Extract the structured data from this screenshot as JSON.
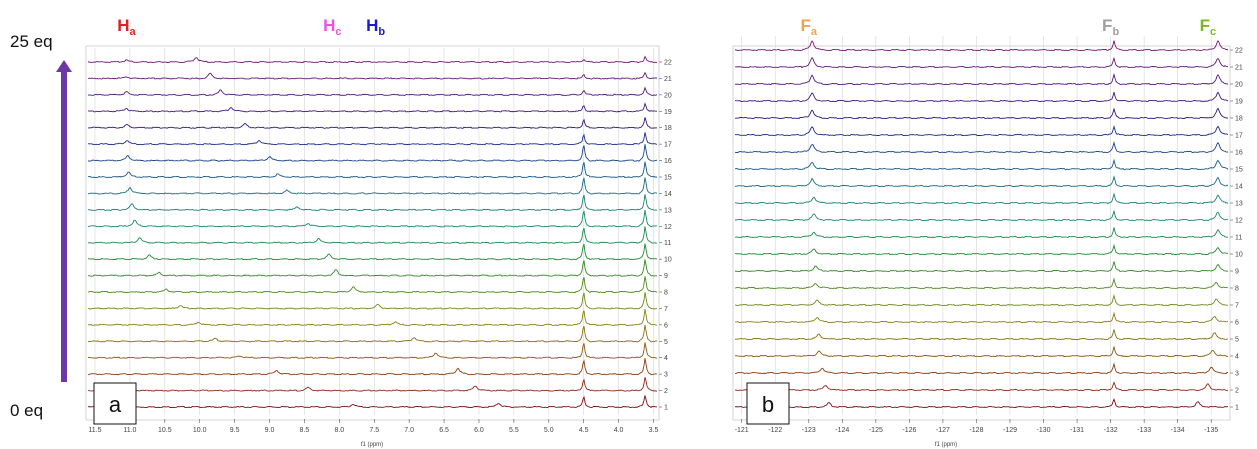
{
  "axis_label": "f1 (ppm)",
  "eq_top": "25 eq",
  "eq_bottom": "0 eq",
  "arrow_color": "#6b38a6",
  "chart_data": [
    {
      "type": "line",
      "panel_label": "a",
      "xlabel": "f1 (ppm)",
      "x_reversed": true,
      "xlim": [
        3.45,
        11.6
      ],
      "x_ticks": [
        "11.5",
        "11.0",
        "10.5",
        "10.0",
        "9.5",
        "9.0",
        "8.5",
        "8.0",
        "7.5",
        "7.0",
        "6.5",
        "6.0",
        "5.5",
        "5.0",
        "4.5",
        "4.0",
        "3.5"
      ],
      "spectrum_numbers": [
        "1",
        "2",
        "3",
        "4",
        "5",
        "6",
        "7",
        "8",
        "9",
        "10",
        "11",
        "12",
        "13",
        "14",
        "15",
        "16",
        "17",
        "18",
        "19",
        "20",
        "21",
        "22"
      ],
      "peak_labels": [
        {
          "base": "H",
          "sub": "a",
          "color": "#e02020",
          "ppm": 11.05
        },
        {
          "base": "H",
          "sub": "c",
          "color": "#f050e0",
          "ppm": 8.1
        },
        {
          "base": "H",
          "sub": "b",
          "color": "#1a1ad6",
          "ppm": 7.48
        }
      ],
      "series_colors": [
        "#7a0f14",
        "#8a2a18",
        "#8a3d10",
        "#8a5a10",
        "#8a6e10",
        "#8a8018",
        "#6f8a1c",
        "#4f8a1c",
        "#338a26",
        "#228a36",
        "#1c8a50",
        "#1a8a6a",
        "#1a8078",
        "#1a6e80",
        "#1a5a86",
        "#1a4688",
        "#1a2f86",
        "#2a1a80",
        "#401a84",
        "#521a80",
        "#641a78",
        "#761a6e"
      ],
      "fixed_peaks": [
        {
          "ppm": 4.5,
          "heights": [
            10,
            12,
            14,
            16,
            16,
            16,
            16,
            16,
            16,
            16,
            16,
            16,
            16,
            16,
            16,
            16,
            10,
            8,
            6,
            5,
            4,
            3
          ]
        },
        {
          "ppm": 3.62,
          "heights": [
            12,
            14,
            16,
            16,
            16,
            16,
            16,
            16,
            16,
            16,
            16,
            16,
            16,
            16,
            16,
            16,
            12,
            10,
            8,
            7,
            6,
            5
          ]
        }
      ],
      "moving_peaks": [
        {
          "name": "Ha",
          "ppm": [
            5.72,
            6.05,
            6.3,
            6.62,
            6.93,
            7.2,
            7.45,
            7.8,
            8.05,
            8.15,
            8.3,
            8.45,
            8.6,
            8.75,
            8.88,
            9.0,
            9.15,
            9.35,
            9.55,
            9.7,
            9.85,
            10.05
          ],
          "heights": [
            4,
            5,
            6,
            5,
            4,
            3,
            4,
            5,
            6,
            5,
            4,
            3,
            3,
            3,
            3,
            4,
            4,
            4,
            4,
            5,
            5,
            5
          ]
        },
        {
          "name": "Hb",
          "ppm": [
            7.8,
            8.45,
            8.9,
            9.42,
            9.78,
            10.02,
            10.28,
            10.48,
            10.58,
            10.72,
            10.86,
            10.93,
            10.97,
            11.0,
            11.02,
            11.03,
            11.04,
            11.04,
            11.05,
            11.05,
            11.05,
            11.05
          ],
          "heights": [
            3,
            3,
            4,
            2,
            3,
            3,
            3,
            3,
            3,
            4,
            5,
            6,
            6,
            6,
            5,
            5,
            4,
            3,
            3,
            3,
            2,
            2
          ]
        }
      ]
    },
    {
      "type": "line",
      "panel_label": "b",
      "xlabel": "f1 (ppm)",
      "x_reversed": true,
      "xlim": [
        -135.5,
        -120.8
      ],
      "x_ticks": [
        "-121",
        "-122",
        "-123",
        "-124",
        "-125",
        "-126",
        "-127",
        "-128",
        "-129",
        "-130",
        "-131",
        "-132",
        "-133",
        "-134",
        "-135"
      ],
      "spectrum_numbers": [
        "1",
        "2",
        "3",
        "4",
        "5",
        "6",
        "7",
        "8",
        "9",
        "10",
        "11",
        "12",
        "13",
        "14",
        "15",
        "16",
        "17",
        "18",
        "19",
        "20",
        "21",
        "22"
      ],
      "peak_labels": [
        {
          "base": "F",
          "sub": "a",
          "color": "#f5a050",
          "ppm": -123.0
        },
        {
          "base": "F",
          "sub": "b",
          "color": "#a0a0a0",
          "ppm": -132.0
        },
        {
          "base": "F",
          "sub": "c",
          "color": "#7ab820",
          "ppm": -134.9
        }
      ],
      "series_colors": [
        "#7a0f14",
        "#8a2a18",
        "#8a3d10",
        "#8a5a10",
        "#8a6e10",
        "#8a8018",
        "#6f8a1c",
        "#4f8a1c",
        "#338a26",
        "#228a36",
        "#1c8a50",
        "#1a8a6a",
        "#1a8078",
        "#1a6e80",
        "#1a5a86",
        "#1a4688",
        "#1a2f86",
        "#2a1a80",
        "#401a84",
        "#521a80",
        "#641a78",
        "#761a6e"
      ],
      "fixed_peaks": [
        {
          "ppm": -132.1,
          "heights": [
            8,
            8,
            9,
            9,
            9,
            9,
            9,
            9,
            9,
            9,
            9,
            9,
            9,
            9,
            9,
            9,
            9,
            9,
            9,
            9,
            9,
            9
          ]
        }
      ],
      "moving_peaks": [
        {
          "name": "Fa",
          "ppm": [
            -123.6,
            -123.5,
            -123.4,
            -123.3,
            -123.3,
            -123.25,
            -123.25,
            -123.2,
            -123.2,
            -123.15,
            -123.15,
            -123.15,
            -123.15,
            -123.1,
            -123.1,
            -123.1,
            -123.1,
            -123.1,
            -123.1,
            -123.1,
            -123.1,
            -123.1
          ],
          "heights": [
            4,
            5,
            5,
            5,
            5,
            5,
            5,
            5,
            5,
            5,
            5,
            6,
            6,
            7,
            7,
            8,
            8,
            8,
            8,
            9,
            9,
            9
          ]
        },
        {
          "name": "Fc",
          "ppm": [
            -134.6,
            -134.9,
            -135.0,
            -135.05,
            -135.1,
            -135.1,
            -135.15,
            -135.15,
            -135.2,
            -135.2,
            -135.2,
            -135.2,
            -135.2,
            -135.2,
            -135.2,
            -135.2,
            -135.2,
            -135.2,
            -135.2,
            -135.2,
            -135.2,
            -135.2
          ],
          "heights": [
            5,
            6,
            6,
            6,
            6,
            6,
            6,
            6,
            6,
            7,
            7,
            8,
            8,
            8,
            9,
            9,
            9,
            9,
            9,
            9,
            9,
            9
          ]
        }
      ]
    }
  ]
}
